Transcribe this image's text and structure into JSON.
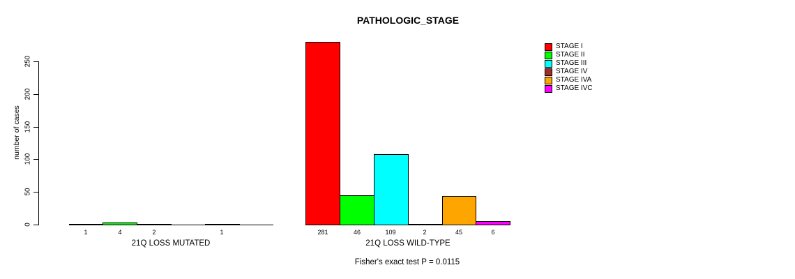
{
  "chart_data": {
    "type": "bar",
    "title": "PATHOLOGIC_STAGE",
    "ylabel": "number of cases",
    "yticks": [
      0,
      50,
      100,
      150,
      200,
      250
    ],
    "ylim": [
      0,
      250
    ],
    "grid": false,
    "legend_position": "right",
    "categories": [
      "STAGE I",
      "STAGE II",
      "STAGE III",
      "STAGE IV",
      "STAGE IVA",
      "STAGE IVC"
    ],
    "legend": [
      {
        "label": "STAGE I",
        "color": "#FF0000"
      },
      {
        "label": "STAGE II",
        "color": "#00FF00"
      },
      {
        "label": "STAGE III",
        "color": "#00FFFF"
      },
      {
        "label": "STAGE IV",
        "color": "#A52A2A"
      },
      {
        "label": "STAGE IVA",
        "color": "#FFA500"
      },
      {
        "label": "STAGE IVC",
        "color": "#FF00FF"
      }
    ],
    "groups": [
      {
        "label": "21Q LOSS MUTATED",
        "values": [
          1,
          4,
          2,
          0,
          1,
          0
        ]
      },
      {
        "label": "21Q LOSS WILD-TYPE",
        "values": [
          281,
          46,
          109,
          2,
          45,
          6
        ]
      }
    ],
    "annotation": "Fisher's exact test P = 0.0115"
  }
}
